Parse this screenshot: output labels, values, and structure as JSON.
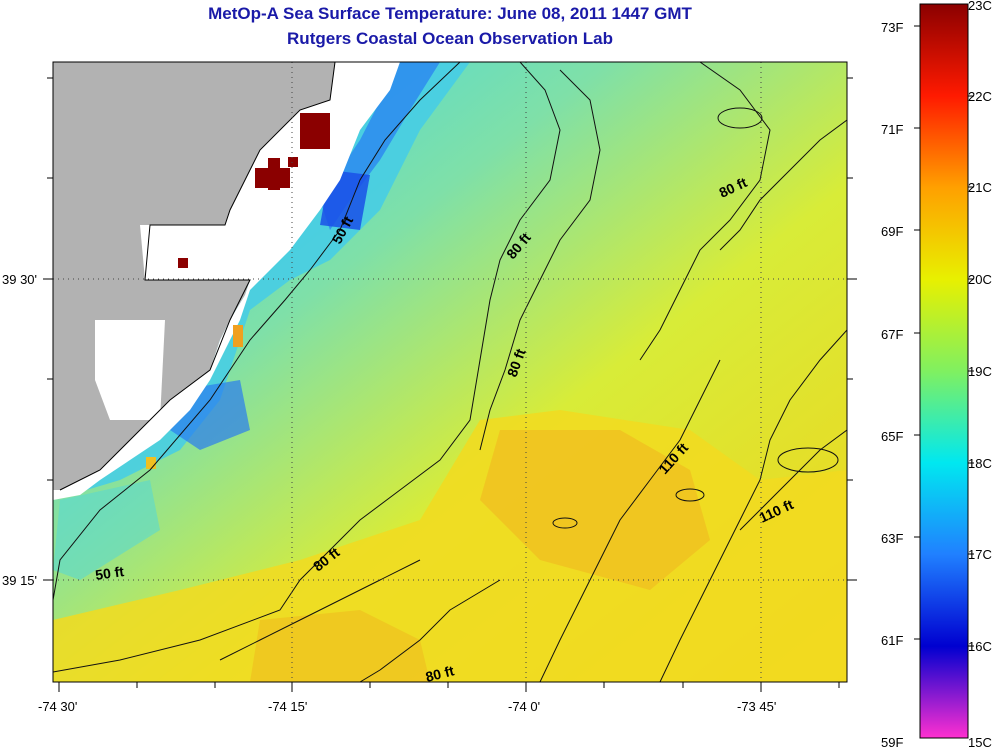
{
  "title": "MetOp-A Sea Surface Temperature:  June 08, 2011 1447 GMT",
  "subtitle": "Rutgers Coastal Ocean Observation Lab",
  "lat_labels": [
    "39 30'",
    "39 15'"
  ],
  "lon_labels": [
    "-74 30'",
    "-74 15'",
    "-74 0'",
    "-73 45'"
  ],
  "contour_labels": [
    "50 ft",
    "80 ft",
    "80 ft",
    "80 ft",
    "80 ft",
    "80 ft",
    "110 ft",
    "110 ft",
    "50 ft"
  ],
  "colorbar": {
    "fahrenheit_labels": [
      "73F",
      "71F",
      "69F",
      "67F",
      "65F",
      "63F",
      "61F",
      "59F"
    ],
    "celsius_labels": [
      "23C",
      "22C",
      "21C",
      "20C",
      "19C",
      "18C",
      "17C",
      "16C",
      "15C"
    ]
  },
  "colors": {
    "title": "#1a1aa8",
    "land": "#b2b2b2",
    "no_data": "#ffffff",
    "cold": "#2a5cf0",
    "warm": "#f0c020",
    "hot": "#8b0000"
  }
}
